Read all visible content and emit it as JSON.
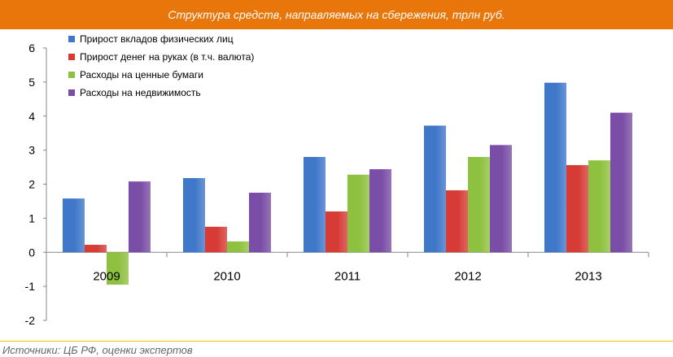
{
  "title": "Структура средств, направляемых на сбережения, трлн руб.",
  "source": "Источники: ЦБ РФ, оценки экспертов",
  "colors": {
    "title_bar": "#e8760a",
    "source_rule": "#f2c200",
    "series": [
      "#3f77c9",
      "#d63b36",
      "#8ec13f",
      "#7a4ea6"
    ]
  },
  "chart_data": {
    "type": "bar",
    "title": "Структура средств, направляемых на сбережения, трлн руб.",
    "xlabel": "",
    "ylabel": "",
    "categories": [
      "2009",
      "2010",
      "2011",
      "2012",
      "2013"
    ],
    "series": [
      {
        "name": "Прирост вкладов физических лиц",
        "values": [
          1.58,
          2.18,
          2.8,
          3.72,
          4.98
        ]
      },
      {
        "name": "Прирост денег на руках (в т.ч. валюта)",
        "values": [
          0.22,
          0.75,
          1.2,
          1.82,
          2.56
        ]
      },
      {
        "name": "Расходы на ценные бумаги",
        "values": [
          -0.95,
          0.32,
          2.28,
          2.8,
          2.7
        ]
      },
      {
        "name": "Расходы на недвижимость",
        "values": [
          2.08,
          1.75,
          2.44,
          3.15,
          4.1
        ]
      }
    ],
    "ylim": [
      -2,
      6
    ],
    "yticks": [
      -2,
      -1,
      0,
      1,
      2,
      3,
      4,
      5,
      6
    ],
    "grid": false,
    "legend_position": "top-left"
  }
}
